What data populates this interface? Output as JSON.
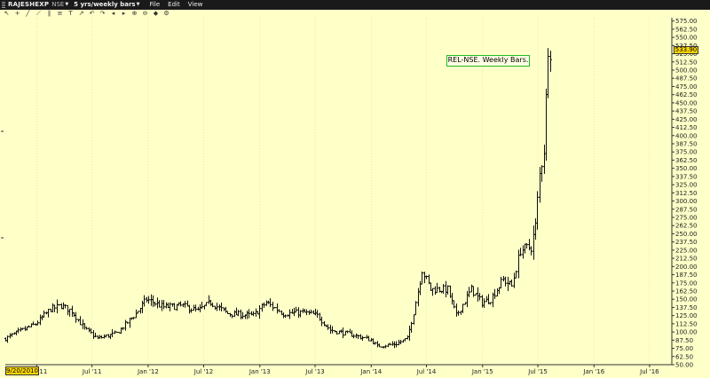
{
  "header": {
    "symbol": "RAJESHEXP",
    "exchange": "NSE",
    "period": "5 yrs/weekly bars",
    "menu": [
      "File",
      "Edit",
      "View"
    ]
  },
  "toolbar": {
    "icons": [
      "cursor-icon",
      "crosshair-icon",
      "line-tool-icon",
      "trendline-icon",
      "channel-icon",
      "fibonacci-icon",
      "text-tool-icon",
      "arrow-icon",
      "undo-icon",
      "redo-icon",
      "back-icon",
      "forward-icon",
      "zoom-in-icon",
      "zoom-out-icon",
      "color-icon",
      "settings-icon"
    ],
    "glyphs": [
      "↖",
      "+",
      "╱",
      "⟋",
      "∥",
      "≡",
      "T",
      "↗",
      "↶",
      "↷",
      "◂",
      "▸",
      "⊕",
      "⊖",
      "◆",
      "⚙"
    ]
  },
  "annotation": "REL-NSE. Weekly Bars.",
  "last_price_label": "533.90",
  "start_date_label": "9/20/2010",
  "colors": {
    "background": "#ffffc8",
    "bars": "#111111",
    "gridline": "#d8d89a",
    "highlight": "#ffd800",
    "callout_border": "#22bb22"
  },
  "chart_data": {
    "type": "ohlc",
    "title": "",
    "xlabel": "",
    "ylabel": "",
    "ylim": [
      50,
      580
    ],
    "grid": true,
    "x_tick_labels": [
      "Jan '11",
      "Jul '11",
      "Jan '12",
      "Jul '12",
      "Jan '13",
      "Jul '13",
      "Jan '14",
      "Jul '14",
      "Jan '15",
      "Jul '15",
      "Jan '16",
      "Jul '16"
    ],
    "y_ticks": [
      50,
      62.5,
      75,
      87.5,
      100,
      112.5,
      125,
      137.5,
      150,
      162.5,
      175,
      187.5,
      200,
      212.5,
      225,
      237.5,
      250,
      262.5,
      275,
      287.5,
      300,
      312.5,
      325,
      337.5,
      350,
      362.5,
      375,
      387.5,
      400,
      412.5,
      425,
      437.5,
      450,
      462.5,
      475,
      487.5,
      500,
      512.5,
      525,
      537.5,
      550,
      562.5,
      575
    ],
    "y_tick_labels": [
      "50.00",
      "62.50",
      "75.00",
      "87.50",
      "100.00",
      "112.50",
      "125.00",
      "137.50",
      "150.00",
      "162.50",
      "175.00",
      "187.50",
      "200.00",
      "212.50",
      "225.00",
      "237.50",
      "250.00",
      "262.50",
      "275.00",
      "287.50",
      "300.00",
      "312.50",
      "325.00",
      "337.50",
      "350.00",
      "362.50",
      "375.00",
      "387.50",
      "400.00",
      "412.50",
      "425.00",
      "437.50",
      "450.00",
      "462.50",
      "475.00",
      "487.50",
      "500.00",
      "512.50",
      "525.00",
      "537.50",
      "550.00",
      "562.50",
      "575.00"
    ],
    "series_anchor_closes": [
      {
        "date": "2010-09-20",
        "close": 90
      },
      {
        "date": "2010-11-01",
        "close": 100
      },
      {
        "date": "2010-12-27",
        "close": 112
      },
      {
        "date": "2011-02-14",
        "close": 135
      },
      {
        "date": "2011-03-21",
        "close": 140
      },
      {
        "date": "2011-04-25",
        "close": 132
      },
      {
        "date": "2011-06-06",
        "close": 105
      },
      {
        "date": "2011-07-18",
        "close": 90
      },
      {
        "date": "2011-09-19",
        "close": 98
      },
      {
        "date": "2011-11-21",
        "close": 128
      },
      {
        "date": "2011-12-26",
        "close": 150
      },
      {
        "date": "2012-02-20",
        "close": 138
      },
      {
        "date": "2012-04-23",
        "close": 140
      },
      {
        "date": "2012-06-11",
        "close": 132
      },
      {
        "date": "2012-07-23",
        "close": 145
      },
      {
        "date": "2012-09-17",
        "close": 128
      },
      {
        "date": "2012-12-10",
        "close": 125
      },
      {
        "date": "2013-01-21",
        "close": 145
      },
      {
        "date": "2013-03-18",
        "close": 128
      },
      {
        "date": "2013-05-20",
        "close": 130
      },
      {
        "date": "2013-07-08",
        "close": 125
      },
      {
        "date": "2013-08-19",
        "close": 103
      },
      {
        "date": "2013-11-04",
        "close": 95
      },
      {
        "date": "2013-12-30",
        "close": 88
      },
      {
        "date": "2014-01-20",
        "close": 78
      },
      {
        "date": "2014-03-24",
        "close": 82
      },
      {
        "date": "2014-04-28",
        "close": 90
      },
      {
        "date": "2014-05-19",
        "close": 130
      },
      {
        "date": "2014-06-16",
        "close": 195
      },
      {
        "date": "2014-07-14",
        "close": 165
      },
      {
        "date": "2014-09-08",
        "close": 165
      },
      {
        "date": "2014-10-06",
        "close": 125
      },
      {
        "date": "2014-11-24",
        "close": 165
      },
      {
        "date": "2014-12-29",
        "close": 145
      },
      {
        "date": "2015-01-26",
        "close": 150
      },
      {
        "date": "2015-03-09",
        "close": 180
      },
      {
        "date": "2015-04-06",
        "close": 170
      },
      {
        "date": "2015-05-04",
        "close": 225
      },
      {
        "date": "2015-06-08",
        "close": 230
      },
      {
        "date": "2015-06-22",
        "close": 262
      },
      {
        "date": "2015-07-06",
        "close": 340
      },
      {
        "date": "2015-07-20",
        "close": 380
      },
      {
        "date": "2015-07-27",
        "close": 455
      },
      {
        "date": "2015-08-03",
        "close": 540
      },
      {
        "date": "2015-08-10",
        "close": 534
      }
    ]
  }
}
